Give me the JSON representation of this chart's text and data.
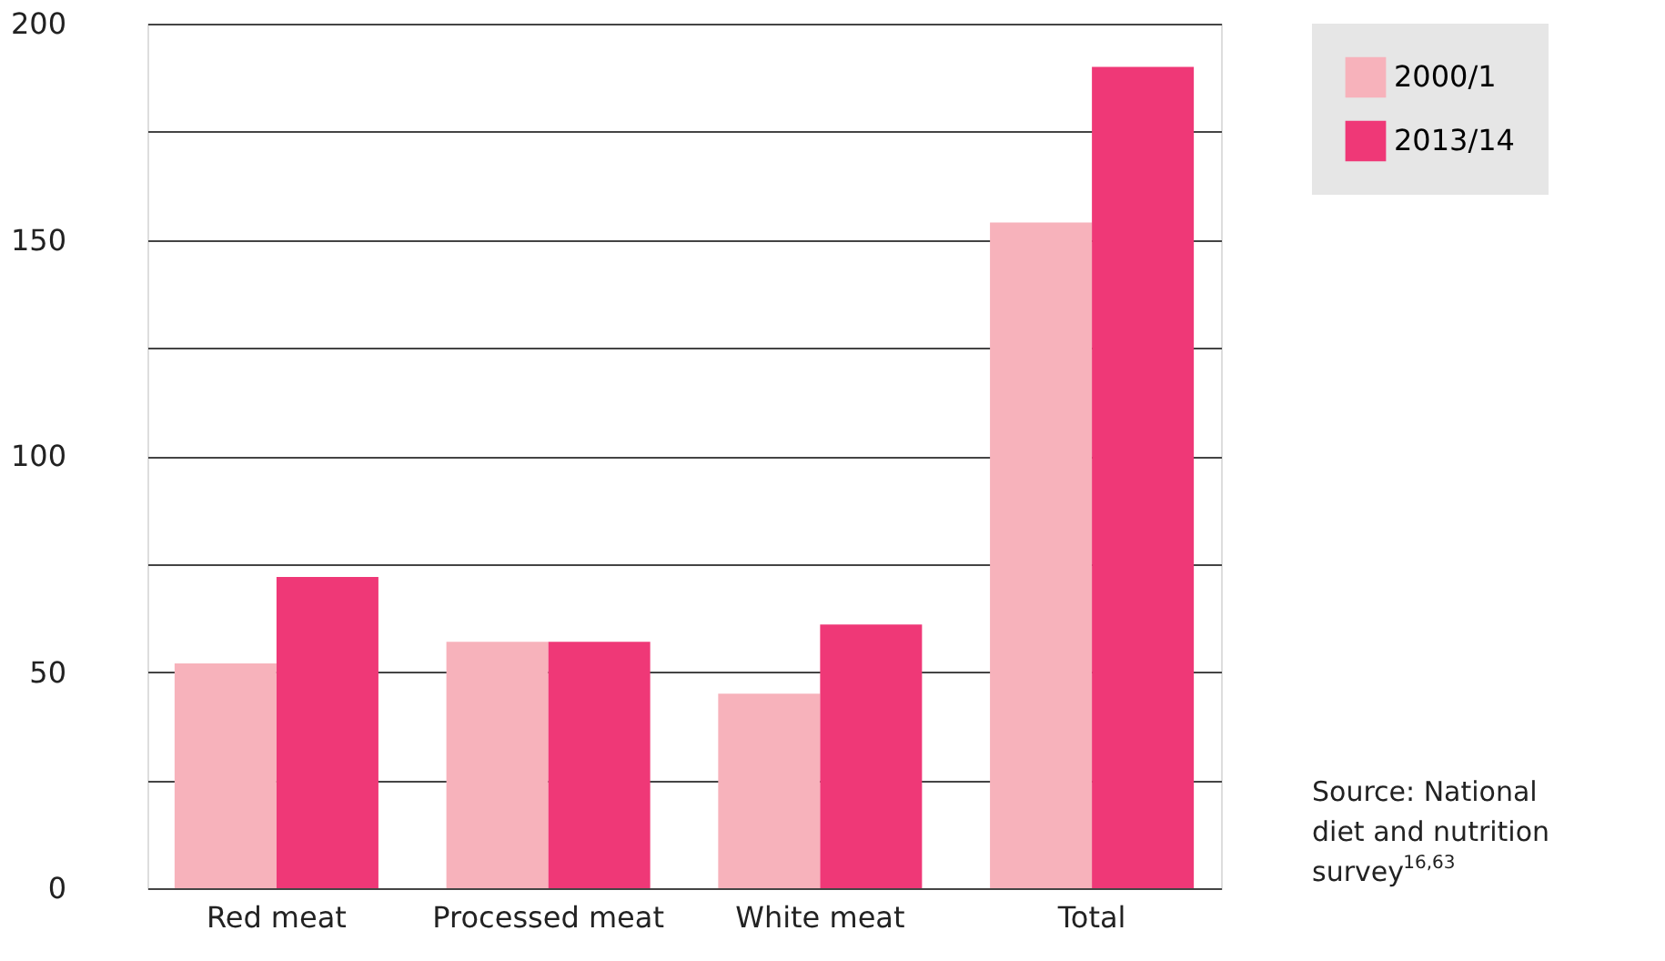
{
  "chart_data": {
    "type": "bar",
    "categories": [
      "Red meat",
      "Processed meat",
      "White meat",
      "Total"
    ],
    "series": [
      {
        "name": "2000/1",
        "color": "#f7b2bb",
        "values": [
          52,
          57,
          45,
          154
        ]
      },
      {
        "name": "2013/14",
        "color": "#ef3877",
        "values": [
          72,
          57,
          61,
          190
        ]
      }
    ],
    "ylim": [
      0,
      200
    ],
    "yticks": [
      0,
      {
        "value": 25,
        "label": null
      },
      50,
      {
        "value": 75,
        "label": null
      },
      100,
      {
        "value": 125,
        "label": null
      },
      150,
      {
        "value": 175,
        "label": null
      },
      200
    ],
    "grid": "y",
    "legend": "top right",
    "annotations": [
      "Source: National diet and nutrition survey$^{16,63}$"
    ]
  }
}
